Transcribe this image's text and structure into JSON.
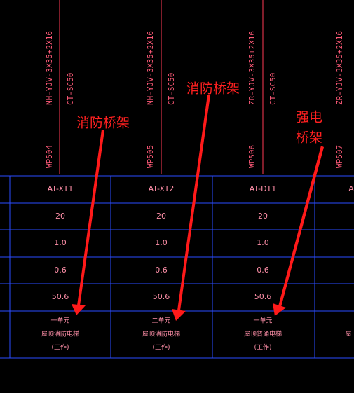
{
  "columns": [
    {
      "cable": "NH-YJV-3X35+2X16",
      "conduit": "CT-SC50",
      "circuit": "WP504",
      "cells": [
        "AT-XT1",
        "20",
        "1.0",
        "0.6",
        "50.6"
      ],
      "note": [
        "一单元",
        "屋顶消防电梯",
        "(工作)"
      ]
    },
    {
      "cable": "NH-YJV-3X35+2X16",
      "conduit": "CT-SC50",
      "circuit": "WP505",
      "cells": [
        "AT-XT2",
        "20",
        "1.0",
        "0.6",
        "50.6"
      ],
      "note": [
        "二单元",
        "屋顶消防电梯",
        "(工作)"
      ]
    },
    {
      "cable": "ZR-YJV-3X35+2X16",
      "conduit": "CT-SC50",
      "circuit": "WP506",
      "cells": [
        "AT-DT1",
        "20",
        "1.0",
        "0.6",
        "50.6"
      ],
      "note": [
        "一单元",
        "屋顶普通电梯",
        "(工作)"
      ]
    },
    {
      "cable": "ZR-YJV-3X35+2X16",
      "circuit": "WP507",
      "cells": [
        "A"
      ],
      "note": [
        "",
        "屋"
      ]
    }
  ],
  "annotations": [
    {
      "lines": [
        "消防桥架"
      ]
    },
    {
      "lines": [
        "消防桥架"
      ]
    },
    {
      "lines": [
        "强电",
        "桥架"
      ]
    }
  ]
}
